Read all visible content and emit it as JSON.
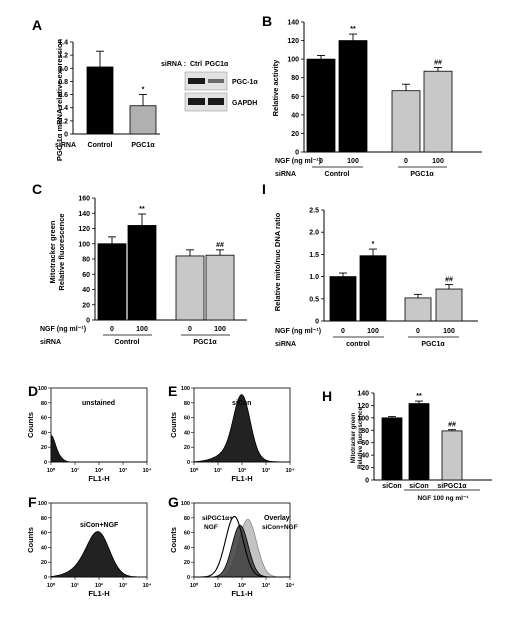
{
  "panels": {
    "A": {
      "label": "A",
      "chart_data": {
        "type": "bar",
        "ylabel": "PGC-1α mRNA relative expression",
        "ylim": [
          0,
          1.4
        ],
        "yticks": [
          "0",
          "0.2",
          "0.4",
          "0.6",
          "0.8",
          "1.0",
          "1.2",
          "1.4"
        ],
        "row_label": "siRNA",
        "categories": [
          "Control",
          "PGC1α"
        ],
        "values": [
          1.02,
          0.43
        ],
        "errors": [
          0.24,
          0.17
        ],
        "colors": [
          "#000000",
          "#b0b0b0"
        ],
        "sig": [
          "",
          "*"
        ]
      },
      "blot": {
        "header": "siRNA :",
        "lanes": [
          "Ctrl",
          "PGC1α"
        ],
        "bands": [
          "PGC-1α",
          "GAPDH"
        ]
      }
    },
    "B": {
      "label": "B",
      "chart_data": {
        "type": "bar",
        "ylabel": "Relative activity",
        "ylim": [
          0,
          140
        ],
        "yticks": [
          "0",
          "20",
          "40",
          "60",
          "80",
          "100",
          "120",
          "140"
        ],
        "row1_label": "NGF (ng ml⁻¹)",
        "row2_label": "siRNA",
        "categories": [
          "0",
          "100",
          "0",
          "100"
        ],
        "groups": [
          "Control",
          "PGC1α"
        ],
        "values": [
          100,
          120,
          66,
          87
        ],
        "errors": [
          4,
          7,
          7,
          4
        ],
        "colors": [
          "#000000",
          "#000000",
          "#c8c8c8",
          "#c8c8c8"
        ],
        "sig": [
          "",
          "**",
          "",
          "##"
        ]
      }
    },
    "C": {
      "label": "C",
      "chart_data": {
        "type": "bar",
        "ylabel_top": "Mitotracker green",
        "ylabel_bottom": "Relative fluorescence",
        "ylim": [
          0,
          160
        ],
        "yticks": [
          "0",
          "20",
          "40",
          "60",
          "80",
          "100",
          "120",
          "140",
          "160"
        ],
        "row1_label": "NGF (ng ml⁻¹)",
        "row2_label": "siRNA",
        "categories": [
          "0",
          "100",
          "0",
          "100"
        ],
        "groups": [
          "Control",
          "PGC1α"
        ],
        "values": [
          100,
          124,
          84,
          85
        ],
        "errors": [
          9,
          15,
          8,
          7
        ],
        "colors": [
          "#000000",
          "#000000",
          "#c8c8c8",
          "#c8c8c8"
        ],
        "sig": [
          "",
          "**",
          "",
          "##"
        ]
      }
    },
    "I": {
      "label": "I",
      "chart_data": {
        "type": "bar",
        "ylabel": "Relative mito/nuc DNA ratio",
        "ylim": [
          0,
          2.5
        ],
        "yticks": [
          "0",
          "0.5",
          "1.0",
          "1.5",
          "2.0",
          "2.5"
        ],
        "row1_label": "NGF (ng ml⁻¹)",
        "row2_label": "siRNA",
        "categories": [
          "0",
          "100",
          "0",
          "100"
        ],
        "groups": [
          "control",
          "PGC1α"
        ],
        "values": [
          1.0,
          1.47,
          0.52,
          0.72
        ],
        "errors": [
          0.08,
          0.15,
          0.08,
          0.1
        ],
        "colors": [
          "#000000",
          "#000000",
          "#c8c8c8",
          "#c8c8c8"
        ],
        "sig": [
          "",
          "*",
          "",
          "##"
        ]
      }
    },
    "H": {
      "label": "H",
      "chart_data": {
        "type": "bar",
        "ylabel_top": "Mitotracker green",
        "ylabel_bottom": "Relative fluorescence",
        "ylim": [
          0,
          140
        ],
        "yticks": [
          "0",
          "20",
          "40",
          "60",
          "80",
          "100",
          "120",
          "140"
        ],
        "categories": [
          "siCon",
          "siCon",
          "siPGC1α"
        ],
        "treatment_label": "NGF 100 ng ml⁻¹",
        "values": [
          100,
          123,
          79
        ],
        "errors": [
          2,
          4,
          2
        ],
        "colors": [
          "#000000",
          "#000000",
          "#c8c8c8"
        ],
        "sig": [
          "",
          "**",
          "##"
        ]
      }
    },
    "flow": {
      "D": {
        "label": "D",
        "caption": "unstained"
      },
      "E": {
        "label": "E",
        "caption": "siCon"
      },
      "F": {
        "label": "F",
        "caption": "siCon+NGF"
      },
      "G": {
        "label": "G",
        "caption": "Overlay",
        "series_a": "siPGC1α+",
        "series_a2": "NGF",
        "series_b": "siCon+NGF"
      },
      "ylabel": "Counts",
      "xlabel": "FL1-H",
      "xticks": [
        "10⁰",
        "10¹",
        "10²",
        "10³",
        "10⁴"
      ],
      "yticks": [
        "0",
        "20",
        "40",
        "60",
        "80",
        "100"
      ]
    }
  }
}
